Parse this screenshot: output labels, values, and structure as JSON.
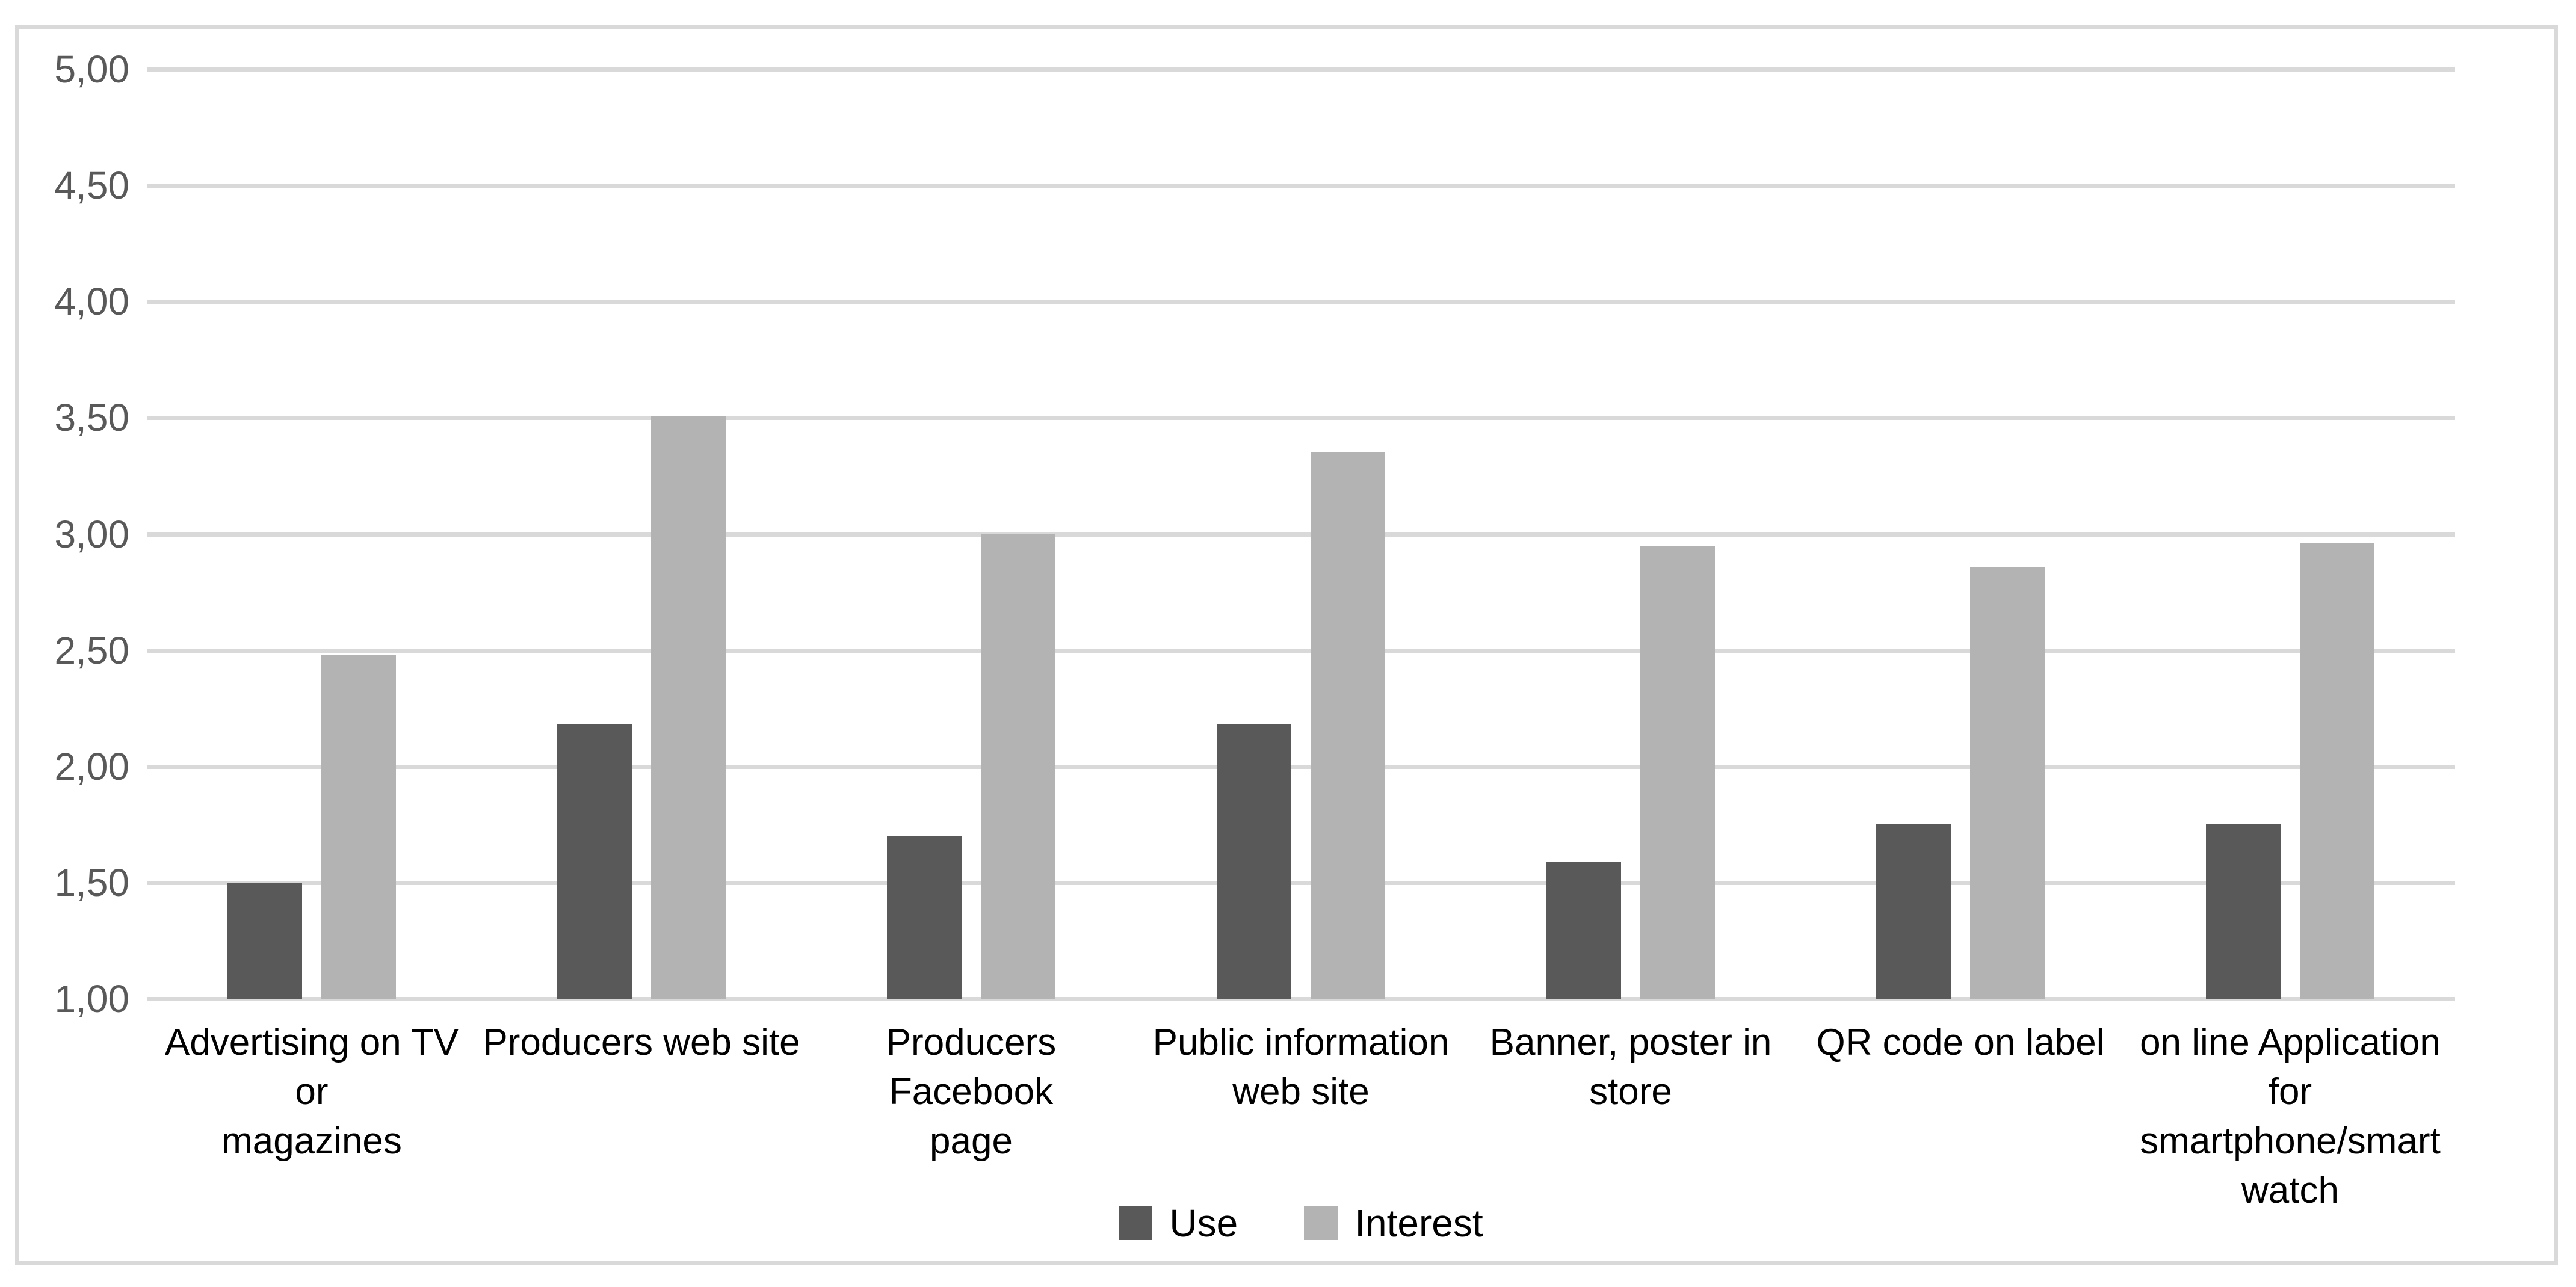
{
  "chart_data": {
    "type": "bar",
    "title": "",
    "categories": [
      "Advertising on TV or\nmagazines",
      "Producers web site",
      "Producers Facebook\npage",
      "Public information\nweb site",
      "Banner, poster in\nstore",
      "QR code on label",
      "on line Application\nfor\nsmartphone/smart\nwatch"
    ],
    "series": [
      {
        "name": "Use",
        "color": "#595959",
        "values": [
          1.5,
          2.18,
          1.7,
          2.18,
          1.59,
          1.75,
          1.75
        ]
      },
      {
        "name": "Interest",
        "color": "#b3b3b3",
        "values": [
          2.48,
          3.51,
          3.0,
          3.35,
          2.95,
          2.86,
          2.96
        ]
      }
    ],
    "xlabel": "",
    "ylabel": "",
    "ylim": [
      1.0,
      5.0
    ],
    "ytick_step": 0.5,
    "ytick_labels": [
      "5,00",
      "4,50",
      "4,00",
      "3,50",
      "3,00",
      "2,50",
      "2,00",
      "1,50",
      "1,00"
    ],
    "decimal_separator": ",",
    "grid": "horizontal",
    "legend_position": "bottom-center",
    "colors": {
      "background": "#ffffff",
      "frame_border": "#d9d9d9",
      "gridline": "#d9d9d9",
      "ytick_text": "#595959",
      "category_text": "#000000",
      "legend_text": "#000000"
    }
  }
}
